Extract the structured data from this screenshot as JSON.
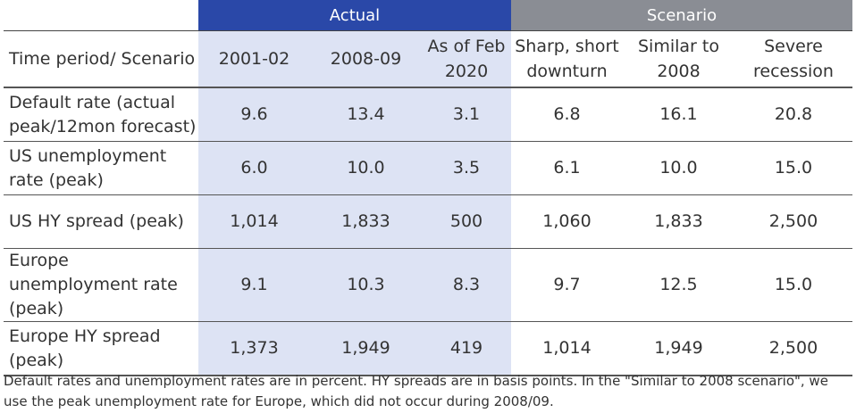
{
  "header": {
    "group_actual": "Actual",
    "group_scenario": "Scenario",
    "columns": [
      "Time period/ Scenario",
      "2001-02",
      "2008-09",
      "As of Feb 2020",
      "Sharp, short downturn",
      "Similar to 2008",
      "Severe recession"
    ]
  },
  "rows": [
    {
      "label": "Default rate (actual peak/12mon forecast)",
      "values": [
        "9.6",
        "13.4",
        "3.1",
        "6.8",
        "16.1",
        "20.8"
      ]
    },
    {
      "label": "US unemployment rate (peak)",
      "values": [
        "6.0",
        "10.0",
        "3.5",
        "6.1",
        "10.0",
        "15.0"
      ]
    },
    {
      "label": "US HY spread (peak)",
      "values": [
        "1,014",
        "1,833",
        "500",
        "1,060",
        "1,833",
        "2,500"
      ]
    },
    {
      "label": "Europe unemployment rate (peak)",
      "values": [
        "9.1",
        "10.3",
        "8.3",
        "9.7",
        "12.5",
        "15.0"
      ]
    },
    {
      "label": "Europe HY spread (peak)",
      "values": [
        "1,373",
        "1,949",
        "419",
        "1,014",
        "1,949",
        "2,500"
      ]
    }
  ],
  "footnote": "Default rates and unemployment rates are in percent. HY spreads are in basis points. In the \"Similar to 2008 scenario\", we use the peak unemployment rate for Europe, which did not occur during 2008/09.",
  "colors": {
    "actual_header": "#2a48a8",
    "scenario_header": "#8a8d94",
    "actual_shading": "#dde3f4"
  }
}
